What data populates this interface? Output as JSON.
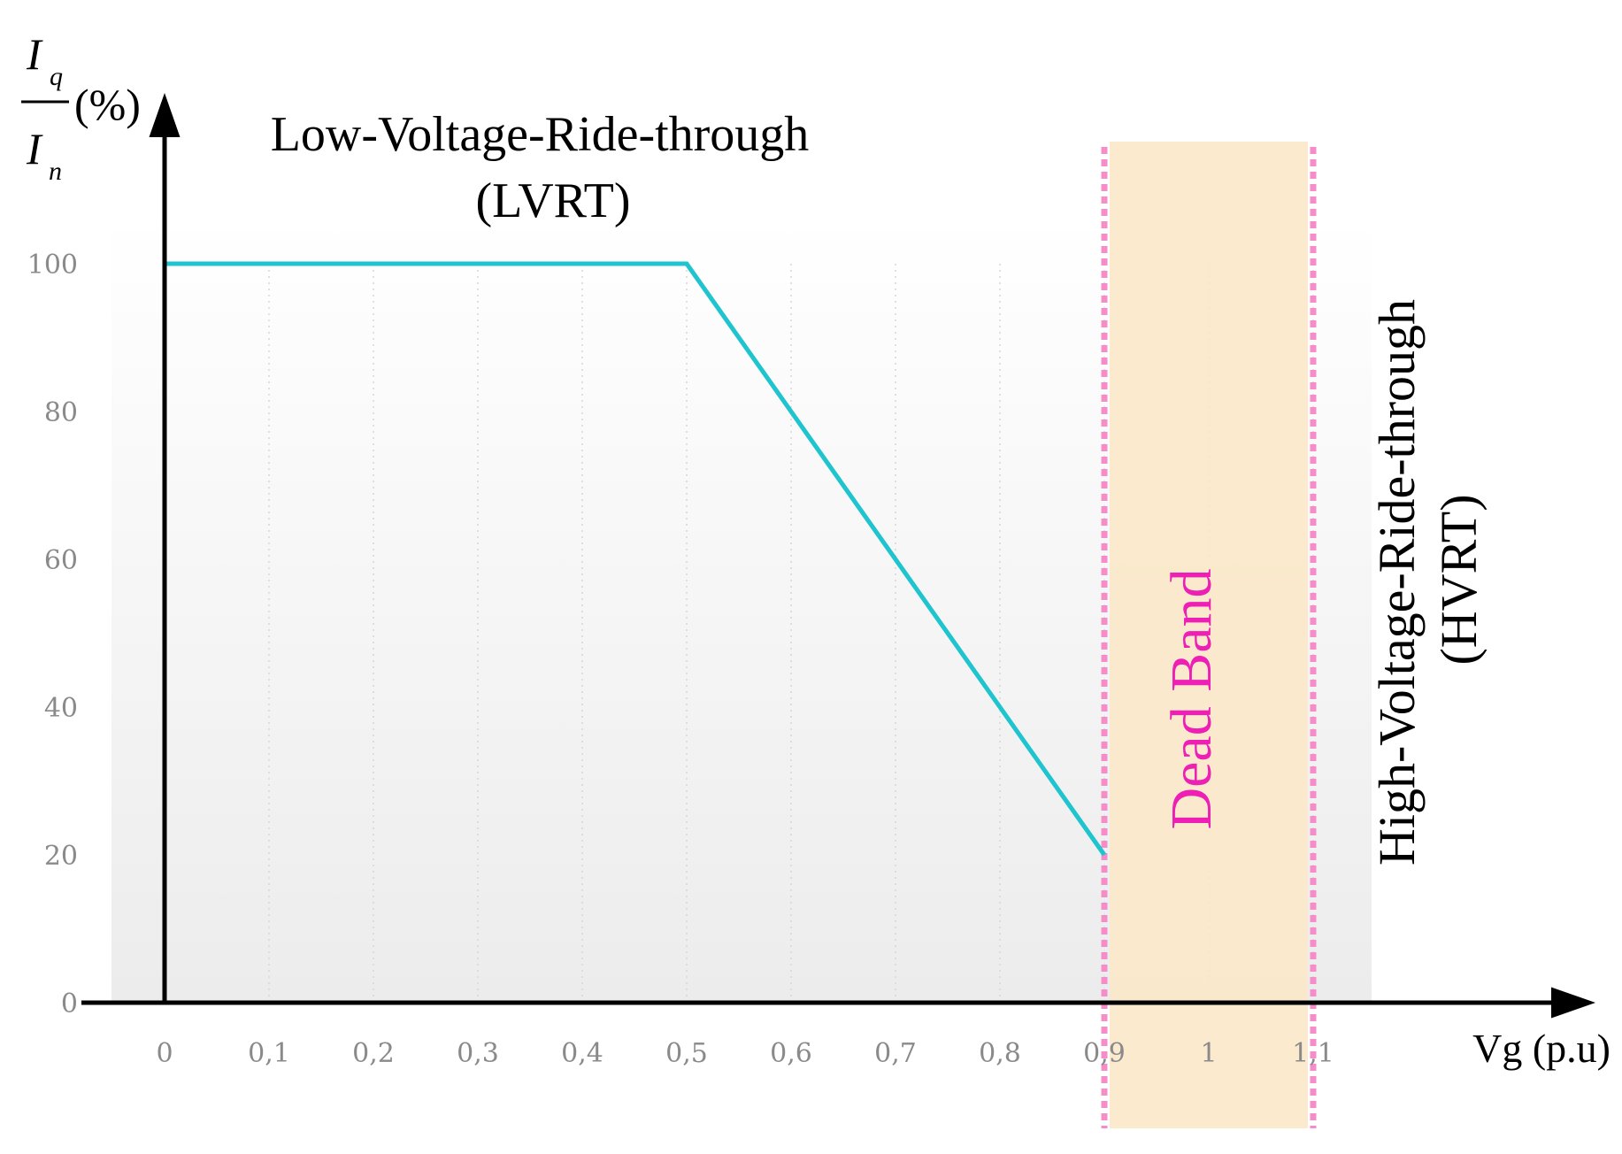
{
  "chart_data": {
    "type": "line",
    "title": "",
    "ylabel": {
      "numerator": "I",
      "numerator_sub": "q",
      "denominator": "I",
      "denominator_sub": "n",
      "unit": "(%)"
    },
    "xlabel": "Vg (p.u)",
    "x_tick_labels": [
      "0",
      "0,1",
      "0,2",
      "0,3",
      "0,4",
      "0,5",
      "0,6",
      "0,7",
      "0,8",
      "0,9",
      "1",
      "1,1"
    ],
    "x_tick_values": [
      0,
      0.1,
      0.2,
      0.3,
      0.4,
      0.5,
      0.6,
      0.7,
      0.8,
      0.9,
      1.0,
      1.1
    ],
    "y_tick_labels": [
      "0",
      "20",
      "40",
      "60",
      "80",
      "100"
    ],
    "y_tick_values": [
      0,
      20,
      40,
      60,
      80,
      100
    ],
    "xlim": [
      -0.05,
      1.35
    ],
    "ylim": [
      0,
      120
    ],
    "grid": "vertical dotted",
    "series": [
      {
        "name": "",
        "color": "#1fc4cf",
        "x": [
          0,
          0.5,
          0.9
        ],
        "y": [
          100,
          100,
          20
        ]
      }
    ],
    "regions": [
      {
        "label": "Dead Band",
        "x_start": 0.9,
        "x_end": 1.1,
        "fill": "#fbe8c8",
        "border_color": "#f58ec8",
        "label_color": "#ee1fb4"
      }
    ],
    "annotations": {
      "lvrt_line1": "Low-Voltage-Ride-through",
      "lvrt_line2": "(LVRT)",
      "hvrt_line1": "High-Voltage-Ride-through",
      "hvrt_line2": "(HVRT)"
    }
  }
}
